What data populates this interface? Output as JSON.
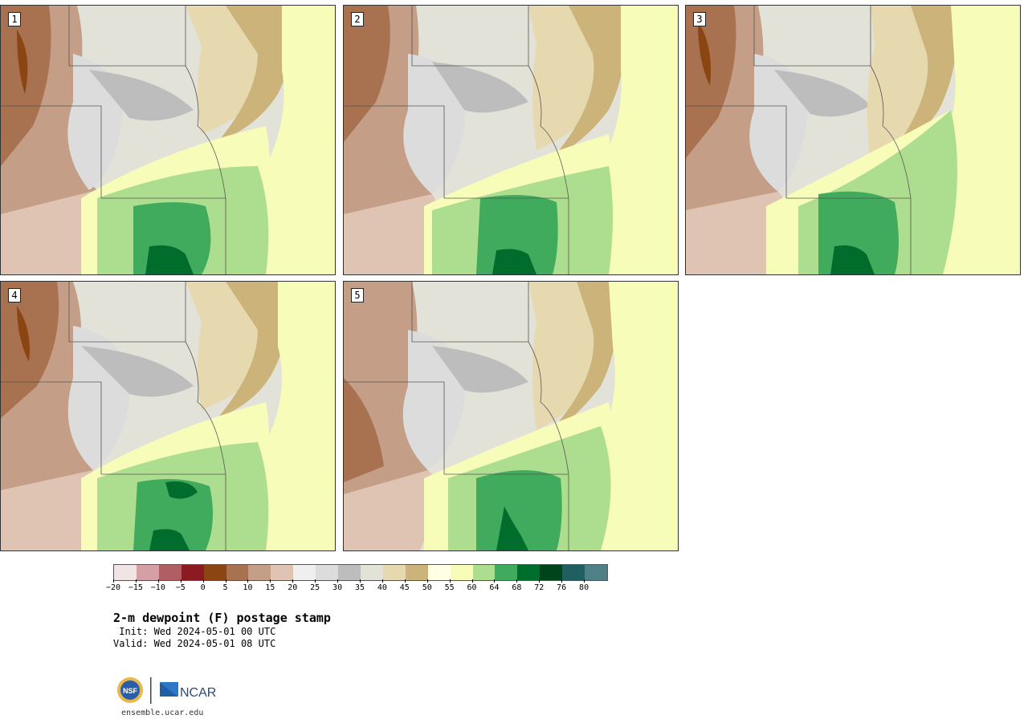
{
  "panels": [
    {
      "label": "1"
    },
    {
      "label": "2"
    },
    {
      "label": "3"
    },
    {
      "label": "4"
    },
    {
      "label": "5"
    }
  ],
  "colorbar": {
    "colors": [
      "#f2e4e4",
      "#d4a0a6",
      "#b05e64",
      "#8b1a22",
      "#8b4513",
      "#a8714f",
      "#c49e86",
      "#dfc4b3",
      "#efefef",
      "#dcdcdc",
      "#bdbdbd",
      "#e2e2d9",
      "#e6d9b0",
      "#ccb379",
      "#ffffe5",
      "#f7fcb9",
      "#addd8e",
      "#41ab5d",
      "#006d2c",
      "#00441b",
      "#1f5f5f",
      "#4f7f87"
    ],
    "tick_labels": [
      "−20",
      "−15",
      "−10",
      "−5",
      "0",
      "5",
      "10",
      "15",
      "20",
      "25",
      "30",
      "35",
      "40",
      "45",
      "50",
      "55",
      "60",
      "64",
      "68",
      "72",
      "76",
      "80"
    ]
  },
  "title": "2-m dewpoint (F) postage stamp",
  "init": " Init: Wed 2024-05-01 00 UTC",
  "valid": "Valid: Wed 2024-05-01 08 UTC",
  "logo": {
    "nsf": "NSF",
    "ncar": "NCAR"
  },
  "website": "ensemble.ucar.edu"
}
